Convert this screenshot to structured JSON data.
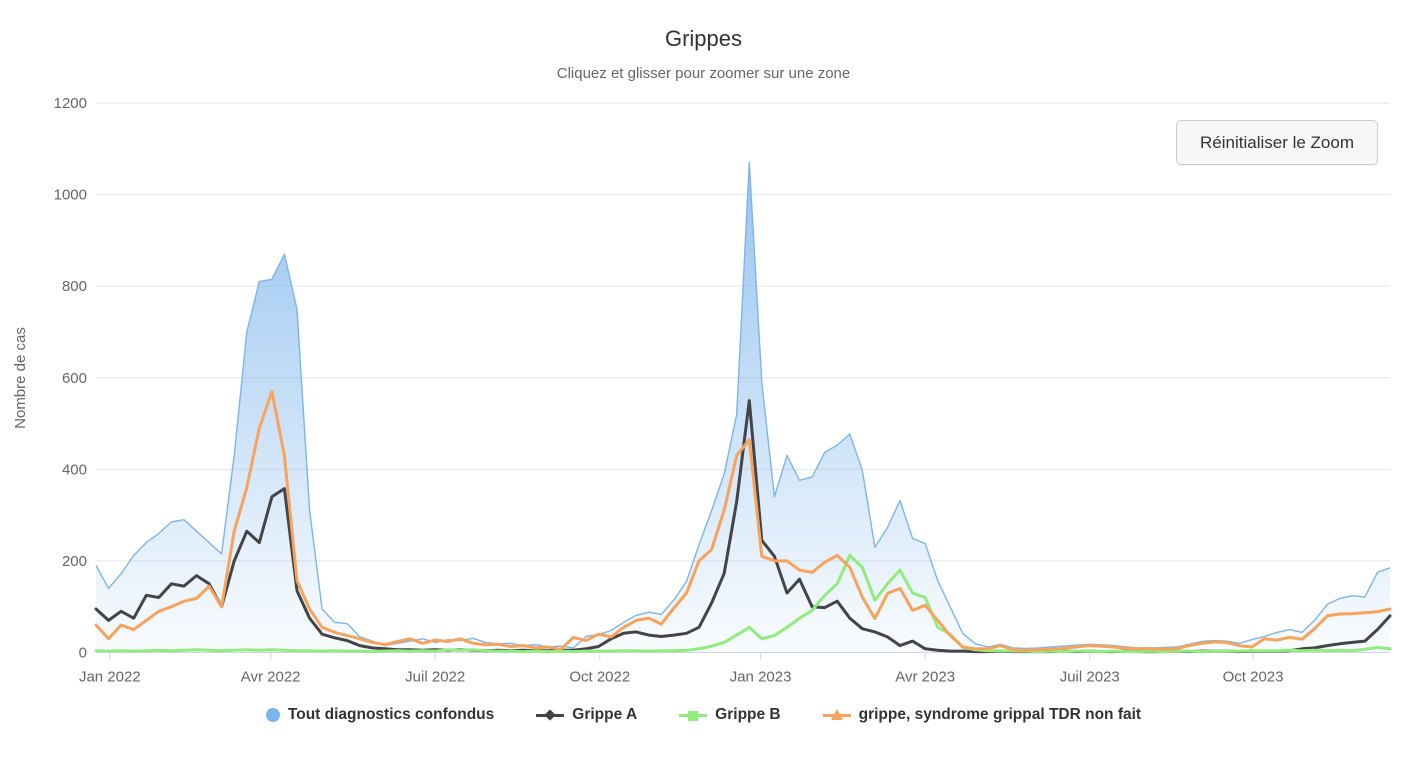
{
  "reset_zoom_button": {
    "label": "Réinitialiser le Zoom"
  },
  "colors": {
    "grid": "#e6e6e6",
    "axis_line": "#ccd6eb",
    "text_primary": "#333333",
    "text_secondary": "#666666",
    "background": "#ffffff"
  },
  "chart_data": {
    "type": "area",
    "title": "Grippes",
    "subtitle": "Cliquez et glisser pour zoomer sur une zone",
    "xlabel": "",
    "ylabel": "Nombre de cas",
    "ylim": [
      0,
      1200
    ],
    "yticks": [
      0,
      200,
      400,
      600,
      800,
      1000,
      1200
    ],
    "grid": true,
    "legend_position": "bottom",
    "x_unit": "week",
    "x_points": 104,
    "x_range": [
      "Jan 2022",
      "Dec 2023"
    ],
    "xticks": [
      {
        "label": "Jan 2022",
        "pos": 1.1
      },
      {
        "label": "Avr 2022",
        "pos": 13.9
      },
      {
        "label": "Juil 2022",
        "pos": 27.0
      },
      {
        "label": "Oct 2022",
        "pos": 40.1
      },
      {
        "label": "Jan 2023",
        "pos": 52.9
      },
      {
        "label": "Avr 2023",
        "pos": 66.0
      },
      {
        "label": "Juil 2023",
        "pos": 79.1
      },
      {
        "label": "Oct 2023",
        "pos": 92.1
      }
    ],
    "series": [
      {
        "name": "Tout diagnostics confondus",
        "type": "area",
        "marker": "circle",
        "color": "#7cb5ec",
        "values": [
          190,
          140,
          172,
          212,
          240,
          260,
          285,
          290,
          265,
          240,
          215,
          430,
          700,
          810,
          815,
          870,
          750,
          310,
          95,
          66,
          63,
          34,
          25,
          15,
          20,
          25,
          30,
          22,
          28,
          26,
          31,
          22,
          19,
          20,
          15,
          17,
          12,
          14,
          10,
          35,
          39,
          48,
          66,
          81,
          88,
          83,
          115,
          155,
          235,
          310,
          390,
          520,
          1070,
          590,
          340,
          430,
          376,
          383,
          437,
          453,
          477,
          398,
          230,
          273,
          332,
          249,
          238,
          157,
          99,
          41,
          19,
          12,
          18,
          10,
          9,
          10,
          12,
          14,
          16,
          18,
          17,
          15,
          12,
          10,
          10,
          11,
          12,
          18,
          24,
          26,
          25,
          20,
          28,
          35,
          44,
          50,
          44,
          70,
          105,
          118,
          124,
          121,
          175,
          185
        ]
      },
      {
        "name": "Grippe A",
        "type": "line",
        "marker": "diamond",
        "color": "#434348",
        "values": [
          95,
          70,
          90,
          75,
          125,
          120,
          150,
          145,
          168,
          150,
          100,
          200,
          265,
          240,
          340,
          358,
          135,
          75,
          40,
          32,
          26,
          15,
          10,
          8,
          6,
          6,
          5,
          6,
          5,
          6,
          5,
          4,
          5,
          4,
          5,
          4,
          4,
          5,
          5,
          8,
          13,
          30,
          42,
          45,
          38,
          35,
          38,
          42,
          55,
          108,
          173,
          330,
          550,
          245,
          210,
          130,
          160,
          100,
          98,
          112,
          75,
          52,
          45,
          34,
          15,
          25,
          8,
          5,
          3,
          3,
          2,
          2,
          3,
          2,
          2,
          2,
          2,
          3,
          2,
          3,
          2,
          2,
          3,
          2,
          2,
          2,
          3,
          2,
          3,
          3,
          3,
          2,
          3,
          3,
          3,
          4,
          8,
          10,
          15,
          19,
          22,
          25,
          50,
          80
        ]
      },
      {
        "name": "Grippe B",
        "type": "line",
        "marker": "square",
        "color": "#90ed7d",
        "values": [
          4,
          3,
          4,
          3,
          4,
          5,
          4,
          5,
          6,
          5,
          4,
          5,
          6,
          5,
          6,
          5,
          4,
          4,
          3,
          4,
          3,
          3,
          2,
          3,
          4,
          3,
          4,
          3,
          6,
          5,
          6,
          4,
          3,
          3,
          2,
          3,
          2,
          3,
          2,
          3,
          3,
          3,
          4,
          4,
          3,
          4,
          4,
          5,
          8,
          14,
          22,
          38,
          55,
          30,
          37,
          55,
          75,
          92,
          125,
          150,
          212,
          186,
          114,
          150,
          180,
          130,
          120,
          55,
          40,
          11,
          6,
          4,
          4,
          3,
          3,
          2,
          3,
          2,
          3,
          3,
          2,
          3,
          2,
          2,
          3,
          2,
          3,
          3,
          2,
          3,
          3,
          3,
          4,
          4,
          4,
          5,
          4,
          5,
          4,
          5,
          4,
          7,
          11,
          8
        ]
      },
      {
        "name": "grippe, syndrome grippal TDR non fait",
        "type": "line",
        "marker": "triangle",
        "color": "#f7a35c",
        "values": [
          60,
          30,
          60,
          50,
          70,
          90,
          100,
          112,
          118,
          145,
          100,
          265,
          360,
          490,
          570,
          430,
          157,
          95,
          55,
          44,
          37,
          30,
          22,
          17,
          24,
          30,
          20,
          27,
          24,
          30,
          20,
          17,
          18,
          13,
          15,
          10,
          12,
          7,
          33,
          26,
          40,
          34,
          55,
          70,
          75,
          62,
          97,
          130,
          200,
          225,
          311,
          430,
          465,
          210,
          200,
          200,
          180,
          175,
          197,
          212,
          186,
          121,
          74,
          129,
          140,
          92,
          103,
          70,
          37,
          12,
          8,
          8,
          15,
          6,
          5,
          6,
          7,
          9,
          12,
          15,
          14,
          12,
          9,
          8,
          8,
          7,
          8,
          15,
          20,
          23,
          22,
          15,
          12,
          30,
          27,
          33,
          29,
          52,
          80,
          84,
          85,
          87,
          89,
          95
        ]
      }
    ]
  }
}
